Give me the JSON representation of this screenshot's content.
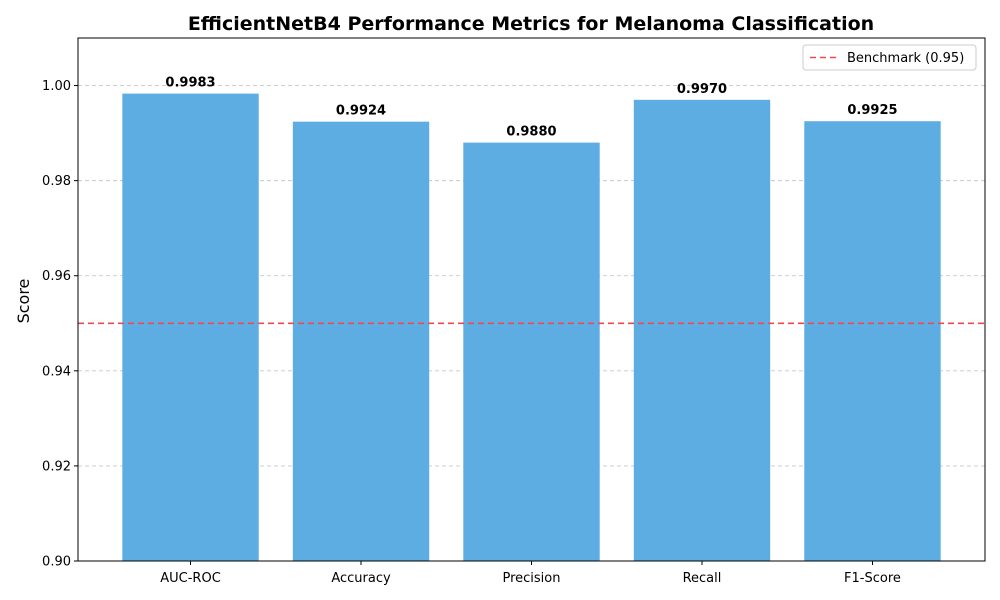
{
  "chart_data": {
    "type": "bar",
    "title": "EfficientNetB4 Performance Metrics for Melanoma Classification",
    "xlabel": "",
    "ylabel": "Score",
    "categories": [
      "AUC-ROC",
      "Accuracy",
      "Precision",
      "Recall",
      "F1-Score"
    ],
    "values": [
      0.9983,
      0.9924,
      0.988,
      0.997,
      0.9925
    ],
    "data_labels": [
      "0.9983",
      "0.9924",
      "0.9880",
      "0.9970",
      "0.9925"
    ],
    "ylim": [
      0.9,
      1.01
    ],
    "yticks": [
      0.9,
      0.92,
      0.94,
      0.96,
      0.98,
      1.0
    ],
    "ytick_labels": [
      "0.90",
      "0.92",
      "0.94",
      "0.96",
      "0.98",
      "1.00"
    ],
    "grid": "y-dashed",
    "bar_color": "#5dade2",
    "reference_line": {
      "value": 0.95,
      "label": "Benchmark (0.95)",
      "color": "#f0484e",
      "style": "dashed"
    },
    "legend_position": "top-right"
  }
}
